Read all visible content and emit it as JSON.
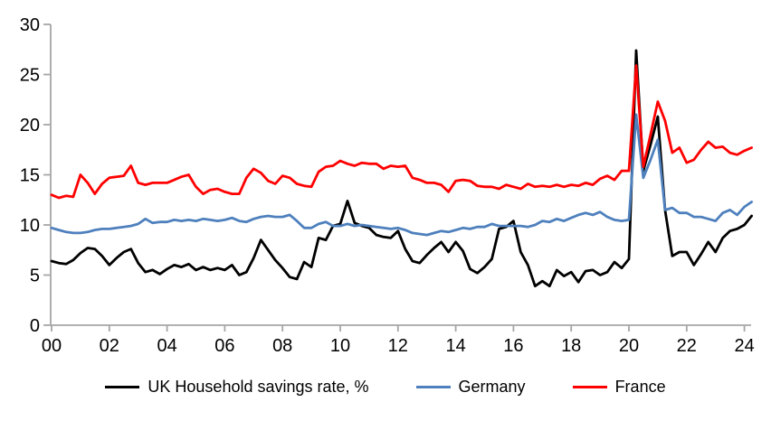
{
  "chart_data": {
    "type": "line",
    "title": "",
    "xlabel": "",
    "ylabel": "",
    "grid": false,
    "legend_position": "bottom",
    "x_start": 2000,
    "x_step_years": 0.25,
    "x_axis": {
      "tick_years": [
        2000,
        2002,
        2004,
        2006,
        2008,
        2010,
        2012,
        2014,
        2016,
        2018,
        2020,
        2022,
        2024
      ],
      "tick_labels": [
        "00",
        "02",
        "04",
        "06",
        "08",
        "10",
        "12",
        "14",
        "16",
        "18",
        "20",
        "22",
        "24"
      ]
    },
    "y_axis": {
      "ticks": [
        0,
        5,
        10,
        15,
        20,
        25,
        30
      ],
      "tick_labels": [
        "0",
        "5",
        "10",
        "15",
        "20",
        "25",
        "30"
      ],
      "ylim": [
        0,
        30
      ]
    },
    "axis_color": "#A6A6A6",
    "series": [
      {
        "name": "UK Household savings rate, %",
        "color": "#000000",
        "values": [
          6.4,
          6.2,
          6.1,
          6.5,
          7.2,
          7.7,
          7.6,
          6.9,
          6.0,
          6.7,
          7.3,
          7.6,
          6.2,
          5.3,
          5.5,
          5.1,
          5.6,
          6.0,
          5.8,
          6.1,
          5.5,
          5.8,
          5.5,
          5.7,
          5.5,
          6.0,
          5.0,
          5.3,
          6.7,
          8.5,
          7.5,
          6.5,
          5.7,
          4.8,
          4.6,
          6.3,
          5.8,
          8.7,
          8.5,
          9.9,
          10.1,
          12.4,
          10.2,
          9.9,
          9.7,
          9.0,
          8.8,
          8.7,
          9.4,
          7.6,
          6.4,
          6.2,
          7.0,
          7.7,
          8.3,
          7.3,
          8.3,
          7.4,
          5.6,
          5.2,
          5.8,
          6.6,
          9.6,
          9.8,
          10.4,
          7.3,
          6.0,
          3.9,
          4.4,
          3.9,
          5.5,
          4.9,
          5.3,
          4.3,
          5.4,
          5.5,
          5.0,
          5.3,
          6.3,
          5.7,
          6.6,
          27.4,
          15.4,
          18.0,
          20.8,
          11.5,
          6.9,
          7.3,
          7.3,
          6.0,
          7.1,
          8.3,
          7.3,
          8.7,
          9.4,
          9.6,
          10.0,
          10.9
        ]
      },
      {
        "name": "Germany",
        "color": "#4E80BD",
        "values": [
          9.7,
          9.5,
          9.3,
          9.2,
          9.2,
          9.3,
          9.5,
          9.6,
          9.6,
          9.7,
          9.8,
          9.9,
          10.1,
          10.6,
          10.2,
          10.3,
          10.3,
          10.5,
          10.4,
          10.5,
          10.4,
          10.6,
          10.5,
          10.4,
          10.5,
          10.7,
          10.4,
          10.3,
          10.6,
          10.8,
          10.9,
          10.8,
          10.8,
          11.0,
          10.4,
          9.7,
          9.7,
          10.1,
          10.3,
          9.9,
          9.9,
          10.1,
          9.9,
          10.0,
          9.9,
          9.8,
          9.7,
          9.6,
          9.7,
          9.5,
          9.2,
          9.1,
          9.0,
          9.2,
          9.4,
          9.3,
          9.5,
          9.7,
          9.6,
          9.8,
          9.8,
          10.1,
          9.9,
          9.9,
          9.9,
          9.9,
          9.8,
          10.0,
          10.4,
          10.3,
          10.6,
          10.4,
          10.7,
          11.0,
          11.2,
          11.0,
          11.3,
          10.8,
          10.5,
          10.4,
          10.5,
          21.0,
          14.7,
          16.5,
          18.5,
          11.5,
          11.7,
          11.2,
          11.2,
          10.8,
          10.8,
          10.6,
          10.4,
          11.2,
          11.5,
          11.0,
          11.8,
          12.3
        ]
      },
      {
        "name": "France",
        "color": "#FF0000",
        "values": [
          13.0,
          12.7,
          12.9,
          12.8,
          15.0,
          14.2,
          13.1,
          14.1,
          14.7,
          14.8,
          14.9,
          15.9,
          14.2,
          14.0,
          14.2,
          14.2,
          14.2,
          14.5,
          14.8,
          15.0,
          13.8,
          13.1,
          13.5,
          13.6,
          13.3,
          13.1,
          13.1,
          14.7,
          15.6,
          15.2,
          14.4,
          14.1,
          14.9,
          14.7,
          14.1,
          13.9,
          13.8,
          15.3,
          15.8,
          15.9,
          16.4,
          16.1,
          15.9,
          16.2,
          16.1,
          16.1,
          15.6,
          15.9,
          15.8,
          15.9,
          14.7,
          14.5,
          14.2,
          14.2,
          14.0,
          13.3,
          14.4,
          14.5,
          14.4,
          13.9,
          13.8,
          13.8,
          13.6,
          14.0,
          13.8,
          13.6,
          14.1,
          13.8,
          13.9,
          13.8,
          14.0,
          13.8,
          14.0,
          13.9,
          14.2,
          14.0,
          14.6,
          14.9,
          14.5,
          15.4,
          15.4,
          25.9,
          15.8,
          19.0,
          22.3,
          20.4,
          17.2,
          17.7,
          16.2,
          16.5,
          17.5,
          18.3,
          17.7,
          17.8,
          17.2,
          17.0,
          17.4,
          17.7
        ]
      }
    ]
  }
}
